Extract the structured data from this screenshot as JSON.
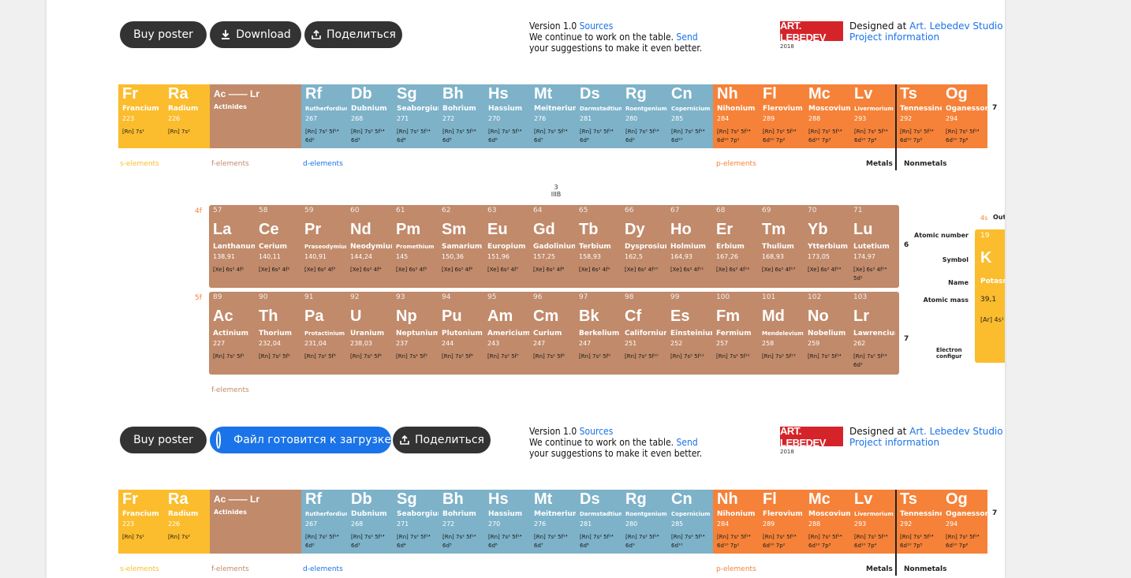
{
  "toolbar_top": {
    "buy": "Buy poster",
    "download": "Download",
    "share": "Поделиться"
  },
  "toolbar_bottom": {
    "buy": "Buy poster",
    "loading": "Файл готовится к загрузке",
    "share": "Поделиться"
  },
  "info": {
    "version": "Version 1.0",
    "sources": "Sources",
    "continue1": "We continue to work on the table.",
    "send": "Send",
    "continue2": "your suggestions to make it even better."
  },
  "studio": {
    "logo_text": "ART. LEBEDEV",
    "year": "2018",
    "designed": "Designed at",
    "studio_link": "Art. Lebedev Studio",
    "project": "Project information"
  },
  "colors": {
    "s": "#fbbd2d",
    "f": "#c18a6a",
    "d": "#7db2c9",
    "p": "#f58238"
  },
  "row7": [
    {
      "sym": "Fr",
      "name": "Francium",
      "mass": "223",
      "cfg": [
        "[Rn] 7s¹"
      ],
      "t": "s"
    },
    {
      "sym": "Ra",
      "name": "Radium",
      "mass": "226",
      "cfg": [
        "[Rn] 7s²"
      ],
      "t": "s"
    },
    {
      "sym": "Ac —— Lr",
      "name": "Actinides",
      "mass": "",
      "cfg": [],
      "t": "f",
      "wide": true
    },
    {
      "sym": "Rf",
      "name": "Rutherfordium",
      "mass": "267",
      "cfg": [
        "[Rn] 7s² 5f¹⁴",
        "6d²"
      ],
      "t": "d",
      "sm": true
    },
    {
      "sym": "Db",
      "name": "Dubnium",
      "mass": "268",
      "cfg": [
        "[Rn] 7s² 5f¹⁴",
        "6d³"
      ],
      "t": "d"
    },
    {
      "sym": "Sg",
      "name": "Seaborgium",
      "mass": "271",
      "cfg": [
        "[Rn] 7s² 5f¹⁴",
        "6d⁴"
      ],
      "t": "d"
    },
    {
      "sym": "Bh",
      "name": "Bohrium",
      "mass": "272",
      "cfg": [
        "[Rn] 7s² 5f¹⁴",
        "6d⁵"
      ],
      "t": "d"
    },
    {
      "sym": "Hs",
      "name": "Hassium",
      "mass": "270",
      "cfg": [
        "[Rn] 7s² 5f¹⁴",
        "6d⁶"
      ],
      "t": "d"
    },
    {
      "sym": "Mt",
      "name": "Meitnerium",
      "mass": "276",
      "cfg": [
        "[Rn] 7s² 5f¹⁴",
        "6d⁷"
      ],
      "t": "d"
    },
    {
      "sym": "Ds",
      "name": "Darmstadtium",
      "mass": "281",
      "cfg": [
        "[Rn] 7s² 5f¹⁴",
        "6d⁸"
      ],
      "t": "d",
      "sm": true
    },
    {
      "sym": "Rg",
      "name": "Roentgenium",
      "mass": "280",
      "cfg": [
        "[Rn] 7s² 5f¹⁴",
        "6d⁹"
      ],
      "t": "d",
      "sm": true
    },
    {
      "sym": "Cn",
      "name": "Copernicium",
      "mass": "285",
      "cfg": [
        "[Rn] 7s² 5f¹⁴",
        "6d¹⁰"
      ],
      "t": "d",
      "sm": true
    },
    {
      "sym": "Nh",
      "name": "Nihonium",
      "mass": "284",
      "cfg": [
        "[Rn] 7s² 5f¹⁴",
        "6d¹⁰ 7p¹"
      ],
      "t": "p"
    },
    {
      "sym": "Fl",
      "name": "Flerovium",
      "mass": "289",
      "cfg": [
        "[Rn] 7s² 5f¹⁴",
        "6d¹⁰ 7p²"
      ],
      "t": "p"
    },
    {
      "sym": "Mc",
      "name": "Moscovium",
      "mass": "288",
      "cfg": [
        "[Rn] 7s² 5f¹⁴",
        "6d¹⁰ 7p³"
      ],
      "t": "p"
    },
    {
      "sym": "Lv",
      "name": "Livermorium",
      "mass": "293",
      "cfg": [
        "[Rn] 7s² 5f¹⁴",
        "6d¹⁰ 7p⁴"
      ],
      "t": "p",
      "sm": true
    },
    {
      "sym": "Ts",
      "name": "Tennessine",
      "mass": "292",
      "cfg": [
        "[Rn] 7s² 5f¹⁴",
        "6d¹⁰ 7p⁵"
      ],
      "t": "p"
    },
    {
      "sym": "Og",
      "name": "Oganesson",
      "mass": "294",
      "cfg": [
        "[Rn] 7s² 5f¹⁴",
        "6d¹⁰ 7p⁶"
      ],
      "t": "p"
    }
  ],
  "row7_period": "7",
  "legend": {
    "s": "s-elements",
    "f": "f-elements",
    "d": "d-elements",
    "p": "p-elements",
    "metals": "Metals",
    "nonmetals": "Nonmetals"
  },
  "group3": "3",
  "group3r": "IIIB",
  "lan_label": "4f",
  "act_label": "5f",
  "lanthanides": [
    {
      "n": "57",
      "sym": "La",
      "name": "Lanthanum",
      "mass": "138,91",
      "cfg": [
        "[Xe] 6s² 4f¹"
      ]
    },
    {
      "n": "58",
      "sym": "Ce",
      "name": "Cerium",
      "mass": "140,11",
      "cfg": [
        "[Xe] 6s² 4f²"
      ]
    },
    {
      "n": "59",
      "sym": "Pr",
      "name": "Praseodymium",
      "mass": "140,91",
      "cfg": [
        "[Xe] 6s² 4f³"
      ],
      "sm": true
    },
    {
      "n": "60",
      "sym": "Nd",
      "name": "Neodymium",
      "mass": "144,24",
      "cfg": [
        "[Xe] 6s² 4f⁴"
      ]
    },
    {
      "n": "61",
      "sym": "Pm",
      "name": "Promethium",
      "mass": "145",
      "cfg": [
        "[Xe] 6s² 4f⁵"
      ],
      "sm": true
    },
    {
      "n": "62",
      "sym": "Sm",
      "name": "Samarium",
      "mass": "150,36",
      "cfg": [
        "[Xe] 6s² 4f⁶"
      ]
    },
    {
      "n": "63",
      "sym": "Eu",
      "name": "Europium",
      "mass": "151,96",
      "cfg": [
        "[Xe] 6s² 4f⁷"
      ]
    },
    {
      "n": "64",
      "sym": "Gd",
      "name": "Gadolinium",
      "mass": "157,25",
      "cfg": [
        "[Xe] 6s² 4f⁸"
      ]
    },
    {
      "n": "65",
      "sym": "Tb",
      "name": "Terbium",
      "mass": "158,93",
      "cfg": [
        "[Xe] 6s² 4f⁹"
      ]
    },
    {
      "n": "66",
      "sym": "Dy",
      "name": "Dysprosium",
      "mass": "162,5",
      "cfg": [
        "[Xe] 6s² 4f¹⁰"
      ]
    },
    {
      "n": "67",
      "sym": "Ho",
      "name": "Holmium",
      "mass": "164,93",
      "cfg": [
        "[Xe] 6s² 4f¹¹"
      ]
    },
    {
      "n": "68",
      "sym": "Er",
      "name": "Erbium",
      "mass": "167,26",
      "cfg": [
        "[Xe] 6s² 4f¹²"
      ]
    },
    {
      "n": "69",
      "sym": "Tm",
      "name": "Thulium",
      "mass": "168,93",
      "cfg": [
        "[Xe] 6s² 4f¹³"
      ]
    },
    {
      "n": "70",
      "sym": "Yb",
      "name": "Ytterbium",
      "mass": "173,05",
      "cfg": [
        "[Xe] 6s² 4f¹⁴"
      ]
    },
    {
      "n": "71",
      "sym": "Lu",
      "name": "Lutetium",
      "mass": "174,97",
      "cfg": [
        "[Xe] 6s² 4f¹⁴",
        "5d¹"
      ]
    }
  ],
  "actinides": [
    {
      "n": "89",
      "sym": "Ac",
      "name": "Actinium",
      "mass": "227",
      "cfg": [
        "[Rn] 7s² 5f¹"
      ]
    },
    {
      "n": "90",
      "sym": "Th",
      "name": "Thorium",
      "mass": "232,04",
      "cfg": [
        "[Rn] 7s² 5f²"
      ]
    },
    {
      "n": "91",
      "sym": "Pa",
      "name": "Protactinium",
      "mass": "231,04",
      "cfg": [
        "[Rn] 7s² 5f³"
      ],
      "sm": true
    },
    {
      "n": "92",
      "sym": "U",
      "name": "Uranium",
      "mass": "238,03",
      "cfg": [
        "[Rn] 7s² 5f⁴"
      ]
    },
    {
      "n": "93",
      "sym": "Np",
      "name": "Neptunium",
      "mass": "237",
      "cfg": [
        "[Rn] 7s² 5f⁵"
      ]
    },
    {
      "n": "94",
      "sym": "Pu",
      "name": "Plutonium",
      "mass": "244",
      "cfg": [
        "[Rn] 7s² 5f⁶"
      ]
    },
    {
      "n": "95",
      "sym": "Am",
      "name": "Americium",
      "mass": "243",
      "cfg": [
        "[Rn] 7s² 5f⁷"
      ]
    },
    {
      "n": "96",
      "sym": "Cm",
      "name": "Curium",
      "mass": "247",
      "cfg": [
        "[Rn] 7s² 5f⁸"
      ]
    },
    {
      "n": "97",
      "sym": "Bk",
      "name": "Berkelium",
      "mass": "247",
      "cfg": [
        "[Rn] 7s² 5f⁹"
      ]
    },
    {
      "n": "98",
      "sym": "Cf",
      "name": "Californium",
      "mass": "251",
      "cfg": [
        "[Rn] 7s² 5f¹⁰"
      ]
    },
    {
      "n": "99",
      "sym": "Es",
      "name": "Einsteinium",
      "mass": "252",
      "cfg": [
        "[Rn] 7s² 5f¹¹"
      ]
    },
    {
      "n": "100",
      "sym": "Fm",
      "name": "Fermium",
      "mass": "257",
      "cfg": [
        "[Rn] 7s² 5f¹²"
      ]
    },
    {
      "n": "101",
      "sym": "Md",
      "name": "Mendelevium",
      "mass": "258",
      "cfg": [
        "[Rn] 7s² 5f¹³"
      ],
      "sm": true
    },
    {
      "n": "102",
      "sym": "No",
      "name": "Nobelium",
      "mass": "259",
      "cfg": [
        "[Rn] 7s² 5f¹⁴"
      ]
    },
    {
      "n": "103",
      "sym": "Lr",
      "name": "Lawrencium",
      "mass": "262",
      "cfg": [
        "[Rn] 7s² 5f¹⁴",
        "6d¹"
      ]
    }
  ],
  "lan_period": "6",
  "act_period": "7",
  "key": {
    "atomic_number": "Atomic number",
    "symbol": "Symbol",
    "name": "Name",
    "atomic_mass": "Atomic mass",
    "electron": "Electron",
    "config": "configur",
    "shell": "4s",
    "outer": "Out",
    "k_num": "19",
    "k_sym": "K",
    "k_name": "Potassi",
    "k_mass": "39,1",
    "k_cfg": "[Ar] 4s¹"
  }
}
